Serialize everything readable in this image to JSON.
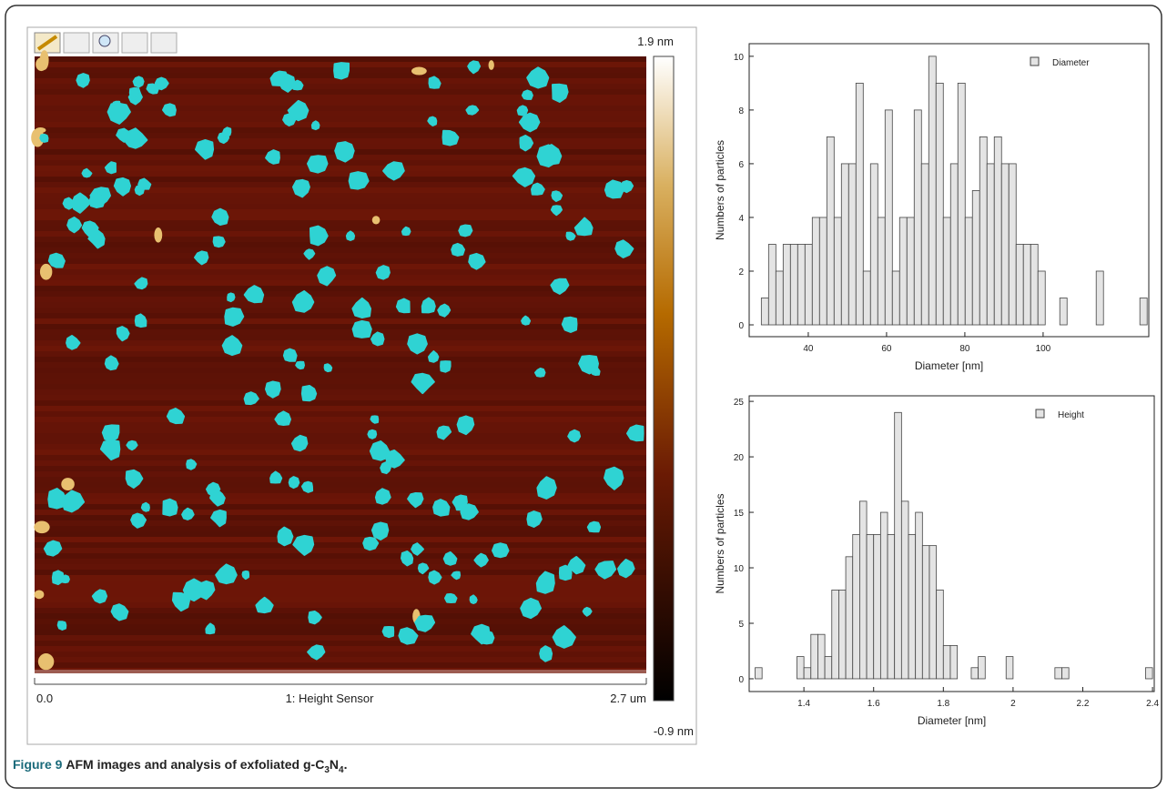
{
  "afm": {
    "scale_max": "1.9 nm",
    "scale_min": "-0.9 nm",
    "x_start": "0.0",
    "channel": "1: Height Sensor",
    "x_end": "2.7 um"
  },
  "caption": {
    "label": "Figure 9",
    "text": [
      "AFM images and analysis of exfoliated g-C",
      "3",
      "N",
      "4",
      "."
    ]
  },
  "chart_data": [
    {
      "type": "histogram",
      "x_label": "Diameter [nm]",
      "y_label": "Numbers of particles",
      "bins": [
        28,
        29.86,
        31.72,
        33.58,
        35.44,
        37.3,
        39.16,
        41.02,
        42.88,
        44.74,
        46.6,
        48.46,
        50.32,
        52.18,
        54.04,
        55.9,
        57.76,
        59.62,
        61.48,
        63.34,
        65.2,
        67.06,
        68.92,
        70.78,
        72.64,
        74.5,
        76.36,
        78.22,
        80.08,
        81.94,
        83.8,
        85.66,
        87.52,
        89.38,
        91.24,
        93.1,
        94.96,
        96.82,
        98.68,
        100.54,
        102.4,
        104.26,
        106.12,
        107.98,
        109.84,
        111.7,
        113.56,
        115.42,
        117.28,
        119.14,
        121,
        122.86,
        124.72,
        126.58
      ],
      "series": [
        {
          "name": "Diameter",
          "color": "#e4e4e4",
          "values": [
            1,
            3,
            2,
            3,
            3,
            3,
            3,
            4,
            4,
            7,
            4,
            6,
            6,
            9,
            2,
            6,
            4,
            8,
            2,
            4,
            4,
            8,
            6,
            10,
            9,
            4,
            6,
            9,
            4,
            5,
            7,
            6,
            7,
            6,
            6,
            3,
            3,
            3,
            2,
            0,
            0,
            1,
            0,
            0,
            0,
            0,
            2,
            0,
            0,
            0,
            0,
            0,
            1
          ]
        }
      ],
      "xlim": [
        24.9,
        127
      ],
      "xticks": [
        40,
        60,
        80,
        100
      ],
      "ylim": [
        -0.44,
        10.47
      ],
      "yticks": [
        0,
        2,
        4,
        6,
        8,
        10
      ],
      "legend": "upper-right"
    },
    {
      "type": "histogram",
      "x_label": "Diameter [nm]",
      "y_label": "Numbers of particles",
      "bins": [
        1.26,
        1.28,
        1.3,
        1.32,
        1.34,
        1.36,
        1.38,
        1.4,
        1.42,
        1.44,
        1.46,
        1.48,
        1.5,
        1.52,
        1.54,
        1.56,
        1.58,
        1.6,
        1.62,
        1.64,
        1.66,
        1.68,
        1.7,
        1.72,
        1.74,
        1.76,
        1.78,
        1.8,
        1.82,
        1.84,
        1.86,
        1.88,
        1.9,
        1.92,
        1.94,
        1.96,
        1.98,
        2,
        2.02,
        2.04,
        2.06,
        2.08,
        2.1,
        2.12,
        2.14,
        2.16,
        2.18,
        2.2,
        2.22,
        2.24,
        2.26,
        2.28,
        2.3,
        2.32,
        2.34,
        2.36,
        2.38,
        2.4
      ],
      "series": [
        {
          "name": "Height",
          "color": "#e4e4e4",
          "values": [
            1,
            0,
            0,
            0,
            0,
            0,
            2,
            1,
            4,
            4,
            2,
            8,
            8,
            11,
            13,
            16,
            13,
            13,
            15,
            13,
            24,
            16,
            13,
            15,
            12,
            12,
            8,
            3,
            3,
            0,
            0,
            1,
            2,
            0,
            0,
            0,
            2,
            0,
            0,
            0,
            0,
            0,
            0,
            1,
            1,
            0,
            0,
            0,
            0,
            0,
            0,
            0,
            0,
            0,
            0,
            0,
            1
          ]
        }
      ],
      "xlim": [
        1.243,
        2.405
      ],
      "xticks": [
        1.4,
        1.6,
        1.8,
        2,
        2.2,
        2.4
      ],
      "ylim": [
        -1.15,
        25.5
      ],
      "yticks": [
        0,
        5,
        10,
        15,
        20,
        25
      ],
      "legend": "upper-right"
    }
  ]
}
